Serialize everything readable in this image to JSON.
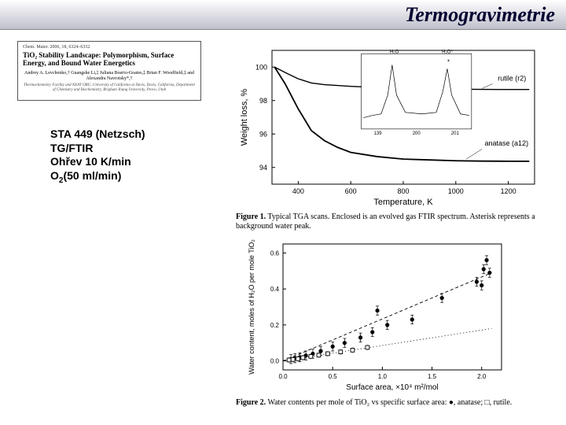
{
  "page_title": "Termogravimetrie",
  "paper_header": {
    "journal": "Chem. Mater. 2006, 18, 6324–6332",
    "title": "TiO₂ Stability Landscape: Polymorphism, Surface Energy, and Bound Water Energetics",
    "authors": "Andrey A. Levchenko,† Guangshe Li,‡ Juliana Boerio-Goates,‡ Brian F. Woodfield,‡ and Alexandra Navrotsky*,†",
    "affiliation": "Thermochemistry Facility and NEAT ORU, University of California at Davis, Davis, California, Department of Chemistry and Biochemistry, Brigham Young University, Provo, Utah"
  },
  "experiment": {
    "line1": "STA 449 (Netzsch)",
    "line2": "TG/FTIR",
    "line3": "Ohřev 10 K/min",
    "line4_pre": "O",
    "line4_sub": "2",
    "line4_post": "(50 ml/min)"
  },
  "figure1": {
    "xlabel": "Temperature, K",
    "ylabel": "Weight loss, %",
    "label_fontsize": 11,
    "tick_fontsize": 9,
    "xlim": [
      300,
      1300
    ],
    "ylim": [
      93,
      101
    ],
    "xticks": [
      400,
      600,
      800,
      1000,
      1200
    ],
    "yticks": [
      94,
      96,
      98,
      100
    ],
    "curves": {
      "rutile": {
        "label": "rutile (r2)",
        "color": "#000000",
        "linewidth": 1.4,
        "points": [
          [
            310,
            100
          ],
          [
            360,
            99.6
          ],
          [
            400,
            99.3
          ],
          [
            450,
            99.05
          ],
          [
            500,
            98.95
          ],
          [
            600,
            98.85
          ],
          [
            700,
            98.78
          ],
          [
            800,
            98.74
          ],
          [
            900,
            98.7
          ],
          [
            1000,
            98.68
          ],
          [
            1100,
            98.67
          ],
          [
            1200,
            98.66
          ],
          [
            1280,
            98.66
          ]
        ]
      },
      "anatase": {
        "label": "anatase (a12)",
        "color": "#000000",
        "linewidth": 1.8,
        "points": [
          [
            310,
            100
          ],
          [
            350,
            99.0
          ],
          [
            400,
            97.5
          ],
          [
            450,
            96.2
          ],
          [
            500,
            95.6
          ],
          [
            550,
            95.2
          ],
          [
            600,
            94.9
          ],
          [
            700,
            94.65
          ],
          [
            800,
            94.5
          ],
          [
            900,
            94.45
          ],
          [
            1000,
            94.4
          ],
          [
            1100,
            94.38
          ],
          [
            1200,
            94.37
          ],
          [
            1280,
            94.37
          ]
        ]
      }
    },
    "inset": {
      "title_left": "H₂O",
      "title_right": "H₂O*",
      "xlabel_ticks": [
        "139",
        "200",
        "201"
      ],
      "small_fontsize": 6
    },
    "caption": "Figure 1.  Typical TGA scans. Enclosed is an evolved gas FTIR spectrum. Asterisk represents a background water peak."
  },
  "figure2": {
    "xlabel": "Surface area, ×10⁴ m²/mol",
    "ylabel": "Water content, moles of H₂O per mole TiO₂",
    "label_fontsize": 10,
    "tick_fontsize": 8,
    "xlim": [
      0,
      2.2
    ],
    "ylim": [
      -0.05,
      0.65
    ],
    "xticks": [
      0.0,
      0.5,
      1.0,
      1.5,
      2.0
    ],
    "yticks": [
      0.0,
      0.2,
      0.4,
      0.6
    ],
    "series": {
      "anatase": {
        "marker": "circle_filled",
        "color": "#000000",
        "points": [
          [
            0.08,
            0.01
          ],
          [
            0.12,
            0.015
          ],
          [
            0.17,
            0.02
          ],
          [
            0.23,
            0.03
          ],
          [
            0.3,
            0.04
          ],
          [
            0.38,
            0.055
          ],
          [
            0.5,
            0.08
          ],
          [
            0.62,
            0.1
          ],
          [
            0.78,
            0.13
          ],
          [
            0.9,
            0.16
          ],
          [
            0.95,
            0.28
          ],
          [
            1.05,
            0.2
          ],
          [
            1.3,
            0.23
          ],
          [
            1.6,
            0.35
          ],
          [
            1.95,
            0.44
          ],
          [
            2.0,
            0.42
          ],
          [
            2.02,
            0.51
          ],
          [
            2.05,
            0.56
          ],
          [
            2.08,
            0.49
          ]
        ],
        "errorbar": 0.025
      },
      "rutile": {
        "marker": "square_open",
        "color": "#000000",
        "points": [
          [
            0.06,
            0.005
          ],
          [
            0.1,
            0.008
          ],
          [
            0.15,
            0.012
          ],
          [
            0.2,
            0.018
          ],
          [
            0.28,
            0.025
          ],
          [
            0.36,
            0.032
          ],
          [
            0.45,
            0.04
          ],
          [
            0.58,
            0.05
          ],
          [
            0.7,
            0.06
          ],
          [
            0.85,
            0.075
          ]
        ],
        "errorbar": 0.015
      }
    },
    "fit_lines": {
      "anatase_dashed": {
        "dash": "4,3",
        "points": [
          [
            0,
            0
          ],
          [
            2.1,
            0.49
          ]
        ]
      },
      "rutile_dotted": {
        "dash": "1,3",
        "points": [
          [
            0,
            0
          ],
          [
            2.1,
            0.18
          ]
        ]
      }
    },
    "caption_pre": "Figure 2.  Water contents per mole of TiO₂ vs specific surface area:  ",
    "caption_anatase": "●, anatase; ",
    "caption_rutile": "□, rutile."
  },
  "colors": {
    "axis": "#000000",
    "background": "#ffffff"
  }
}
